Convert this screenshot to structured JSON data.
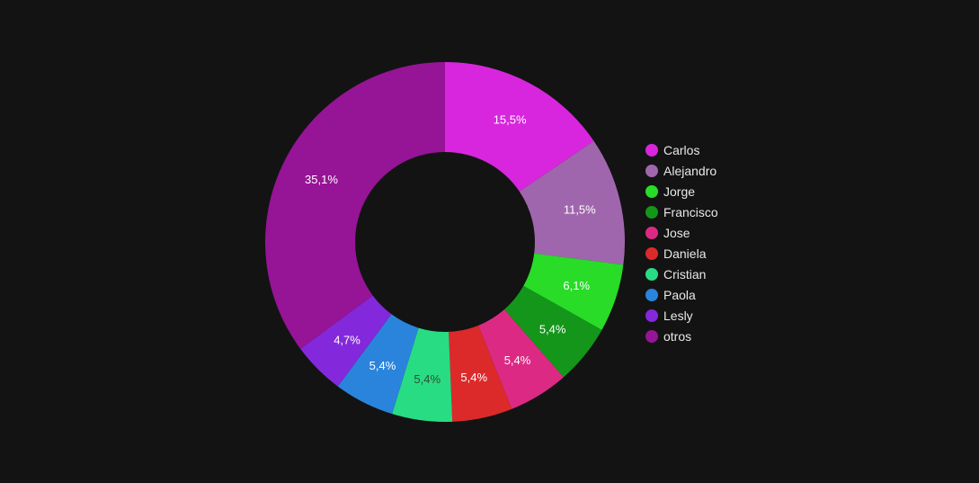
{
  "chart_data": {
    "type": "pie",
    "donut": true,
    "legend_position": "right",
    "slices": [
      {
        "label": "Carlos",
        "value": 15.5,
        "display": "15,5%",
        "color": "#d726dd"
      },
      {
        "label": "Alejandro",
        "value": 11.5,
        "display": "11,5%",
        "color": "#a066ad"
      },
      {
        "label": "Jorge",
        "value": 6.1,
        "display": "6,1%",
        "color": "#28dc28"
      },
      {
        "label": "Francisco",
        "value": 5.4,
        "display": "5,4%",
        "color": "#14961a"
      },
      {
        "label": "Jose",
        "value": 5.4,
        "display": "5,4%",
        "color": "#dc2a84"
      },
      {
        "label": "Daniela",
        "value": 5.4,
        "display": "5,4%",
        "color": "#dc2a2a"
      },
      {
        "label": "Cristian",
        "value": 5.4,
        "display": "5,4%",
        "color": "#28dc84"
      },
      {
        "label": "Paola",
        "value": 5.4,
        "display": "5,4%",
        "color": "#2a84dc"
      },
      {
        "label": "Lesly",
        "value": 4.7,
        "display": "4,7%",
        "color": "#8428dc"
      },
      {
        "label": "otros",
        "value": 35.1,
        "display": "35,1%",
        "color": "#961496"
      }
    ]
  }
}
